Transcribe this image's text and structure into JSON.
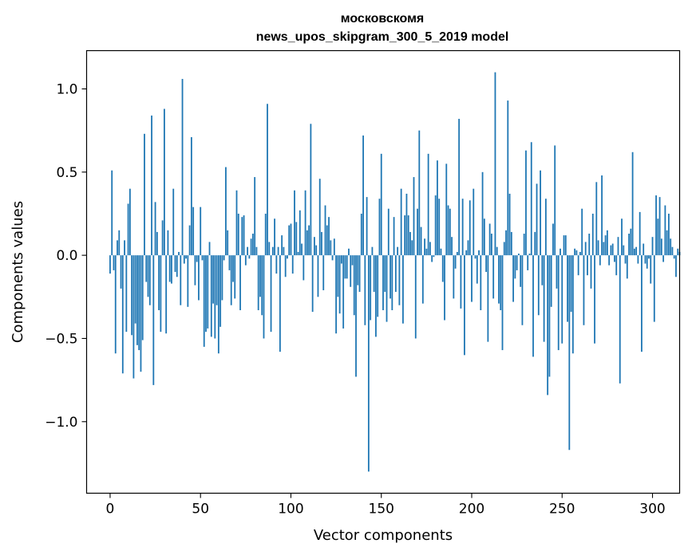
{
  "chart_data": {
    "type": "bar",
    "title": [
      "московскомя",
      "news_upos_skipgram_300_5_2019 model"
    ],
    "xlabel": "Vector components",
    "ylabel": "Components values",
    "xlim": [
      -13,
      315
    ],
    "ylim": [
      -1.43,
      1.23
    ],
    "xticks": [
      0,
      50,
      100,
      150,
      200,
      250,
      300
    ],
    "yticks": [
      -1.0,
      -0.5,
      0.0,
      0.5,
      1.0
    ],
    "xtick_labels": [
      "0",
      "50",
      "100",
      "150",
      "200",
      "250",
      "300"
    ],
    "ytick_labels": [
      "−1.0",
      "−0.5",
      "0.0",
      "0.5",
      "1.0"
    ],
    "bar_color": "#1f77b4",
    "grid": false,
    "values": [
      -0.11,
      0.51,
      -0.09,
      -0.59,
      0.09,
      0.15,
      -0.2,
      -0.71,
      0.09,
      -0.46,
      0.31,
      0.4,
      -0.48,
      -0.74,
      -0.41,
      -0.54,
      -0.57,
      -0.7,
      -0.51,
      0.73,
      -0.16,
      -0.25,
      -0.3,
      0.84,
      -0.78,
      0.32,
      0.14,
      -0.33,
      -0.46,
      0.21,
      0.88,
      -0.47,
      0.15,
      -0.16,
      -0.17,
      0.4,
      -0.1,
      -0.13,
      0.02,
      -0.3,
      1.06,
      -0.05,
      -0.02,
      -0.31,
      0.18,
      0.71,
      0.29,
      -0.18,
      -0.04,
      -0.27,
      0.29,
      -0.03,
      -0.55,
      -0.46,
      -0.44,
      0.08,
      -0.49,
      -0.29,
      -0.5,
      -0.3,
      -0.59,
      -0.43,
      -0.27,
      -0.03,
      0.53,
      0.15,
      -0.09,
      -0.3,
      -0.16,
      -0.26,
      0.39,
      0.25,
      -0.33,
      0.23,
      0.24,
      -0.06,
      0.05,
      -0.02,
      0.1,
      0.13,
      0.47,
      0.05,
      -0.33,
      -0.25,
      -0.36,
      -0.5,
      0.25,
      0.91,
      0.08,
      -0.46,
      0.05,
      0.22,
      -0.11,
      0.05,
      -0.58,
      0.12,
      0.05,
      -0.13,
      -0.02,
      0.18,
      0.19,
      -0.11,
      0.39,
      0.2,
      0.02,
      0.27,
      0.07,
      -0.15,
      0.39,
      0.15,
      0.18,
      0.79,
      -0.34,
      0.11,
      0.06,
      -0.25,
      0.46,
      0.14,
      -0.21,
      0.3,
      0.18,
      0.23,
      0.09,
      -0.03,
      0.1,
      -0.47,
      -0.25,
      -0.35,
      -0.05,
      -0.44,
      -0.14,
      -0.14,
      0.04,
      -0.19,
      -0.06,
      -0.36,
      -0.73,
      -0.18,
      -0.22,
      0.25,
      0.72,
      -0.42,
      0.35,
      -1.3,
      -0.39,
      0.05,
      -0.22,
      -0.49,
      -0.37,
      0.34,
      0.61,
      -0.33,
      -0.22,
      -0.4,
      0.28,
      -0.26,
      -0.33,
      0.23,
      -0.22,
      0.05,
      -0.3,
      0.4,
      -0.41,
      0.24,
      0.37,
      0.24,
      0.14,
      0.09,
      0.47,
      -0.5,
      0.28,
      0.75,
      0.17,
      -0.29,
      0.1,
      0.04,
      0.61,
      0.08,
      -0.04,
      -0.01,
      0.36,
      0.57,
      0.34,
      0.04,
      -0.16,
      -0.39,
      0.55,
      0.3,
      0.28,
      0.11,
      -0.26,
      -0.08,
      0.02,
      0.82,
      -0.32,
      0.34,
      -0.6,
      0.03,
      0.09,
      0.33,
      -0.28,
      0.4,
      -0.02,
      -0.17,
      0.03,
      -0.33,
      0.5,
      0.22,
      -0.1,
      -0.52,
      0.19,
      0.13,
      -0.26,
      1.1,
      0.05,
      -0.29,
      -0.33,
      -0.57,
      0.08,
      0.15,
      0.93,
      0.37,
      0.14,
      -0.28,
      -0.14,
      -0.09,
      0.01,
      -0.19,
      -0.42,
      0.13,
      0.63,
      -0.09,
      0.01,
      0.68,
      -0.61,
      0.14,
      0.43,
      -0.36,
      0.51,
      -0.18,
      -0.52,
      0.34,
      -0.84,
      -0.73,
      -0.31,
      0.19,
      0.66,
      -0.2,
      -0.57,
      0.04,
      -0.53,
      0.12,
      0.12,
      -0.4,
      -1.17,
      -0.34,
      -0.59,
      0.04,
      0.03,
      -0.12,
      0.02,
      0.28,
      -0.42,
      0.08,
      -0.12,
      0.13,
      -0.2,
      0.25,
      -0.53,
      0.44,
      0.09,
      -0.06,
      0.48,
      0.08,
      0.12,
      0.15,
      -0.06,
      0.06,
      0.07,
      -0.04,
      -0.12,
      0.11,
      -0.77,
      0.22,
      0.06,
      -0.05,
      -0.14,
      0.13,
      0.16,
      0.62,
      0.04,
      0.05,
      -0.05,
      0.26,
      -0.58,
      0.07,
      -0.05,
      -0.08,
      -0.02,
      -0.17,
      0.11,
      -0.4,
      0.36,
      0.22,
      0.35,
      0.1,
      -0.04,
      0.3,
      0.15,
      0.25,
      0.1,
      0.05,
      -0.02,
      -0.13,
      0.04,
      0.02
    ]
  }
}
